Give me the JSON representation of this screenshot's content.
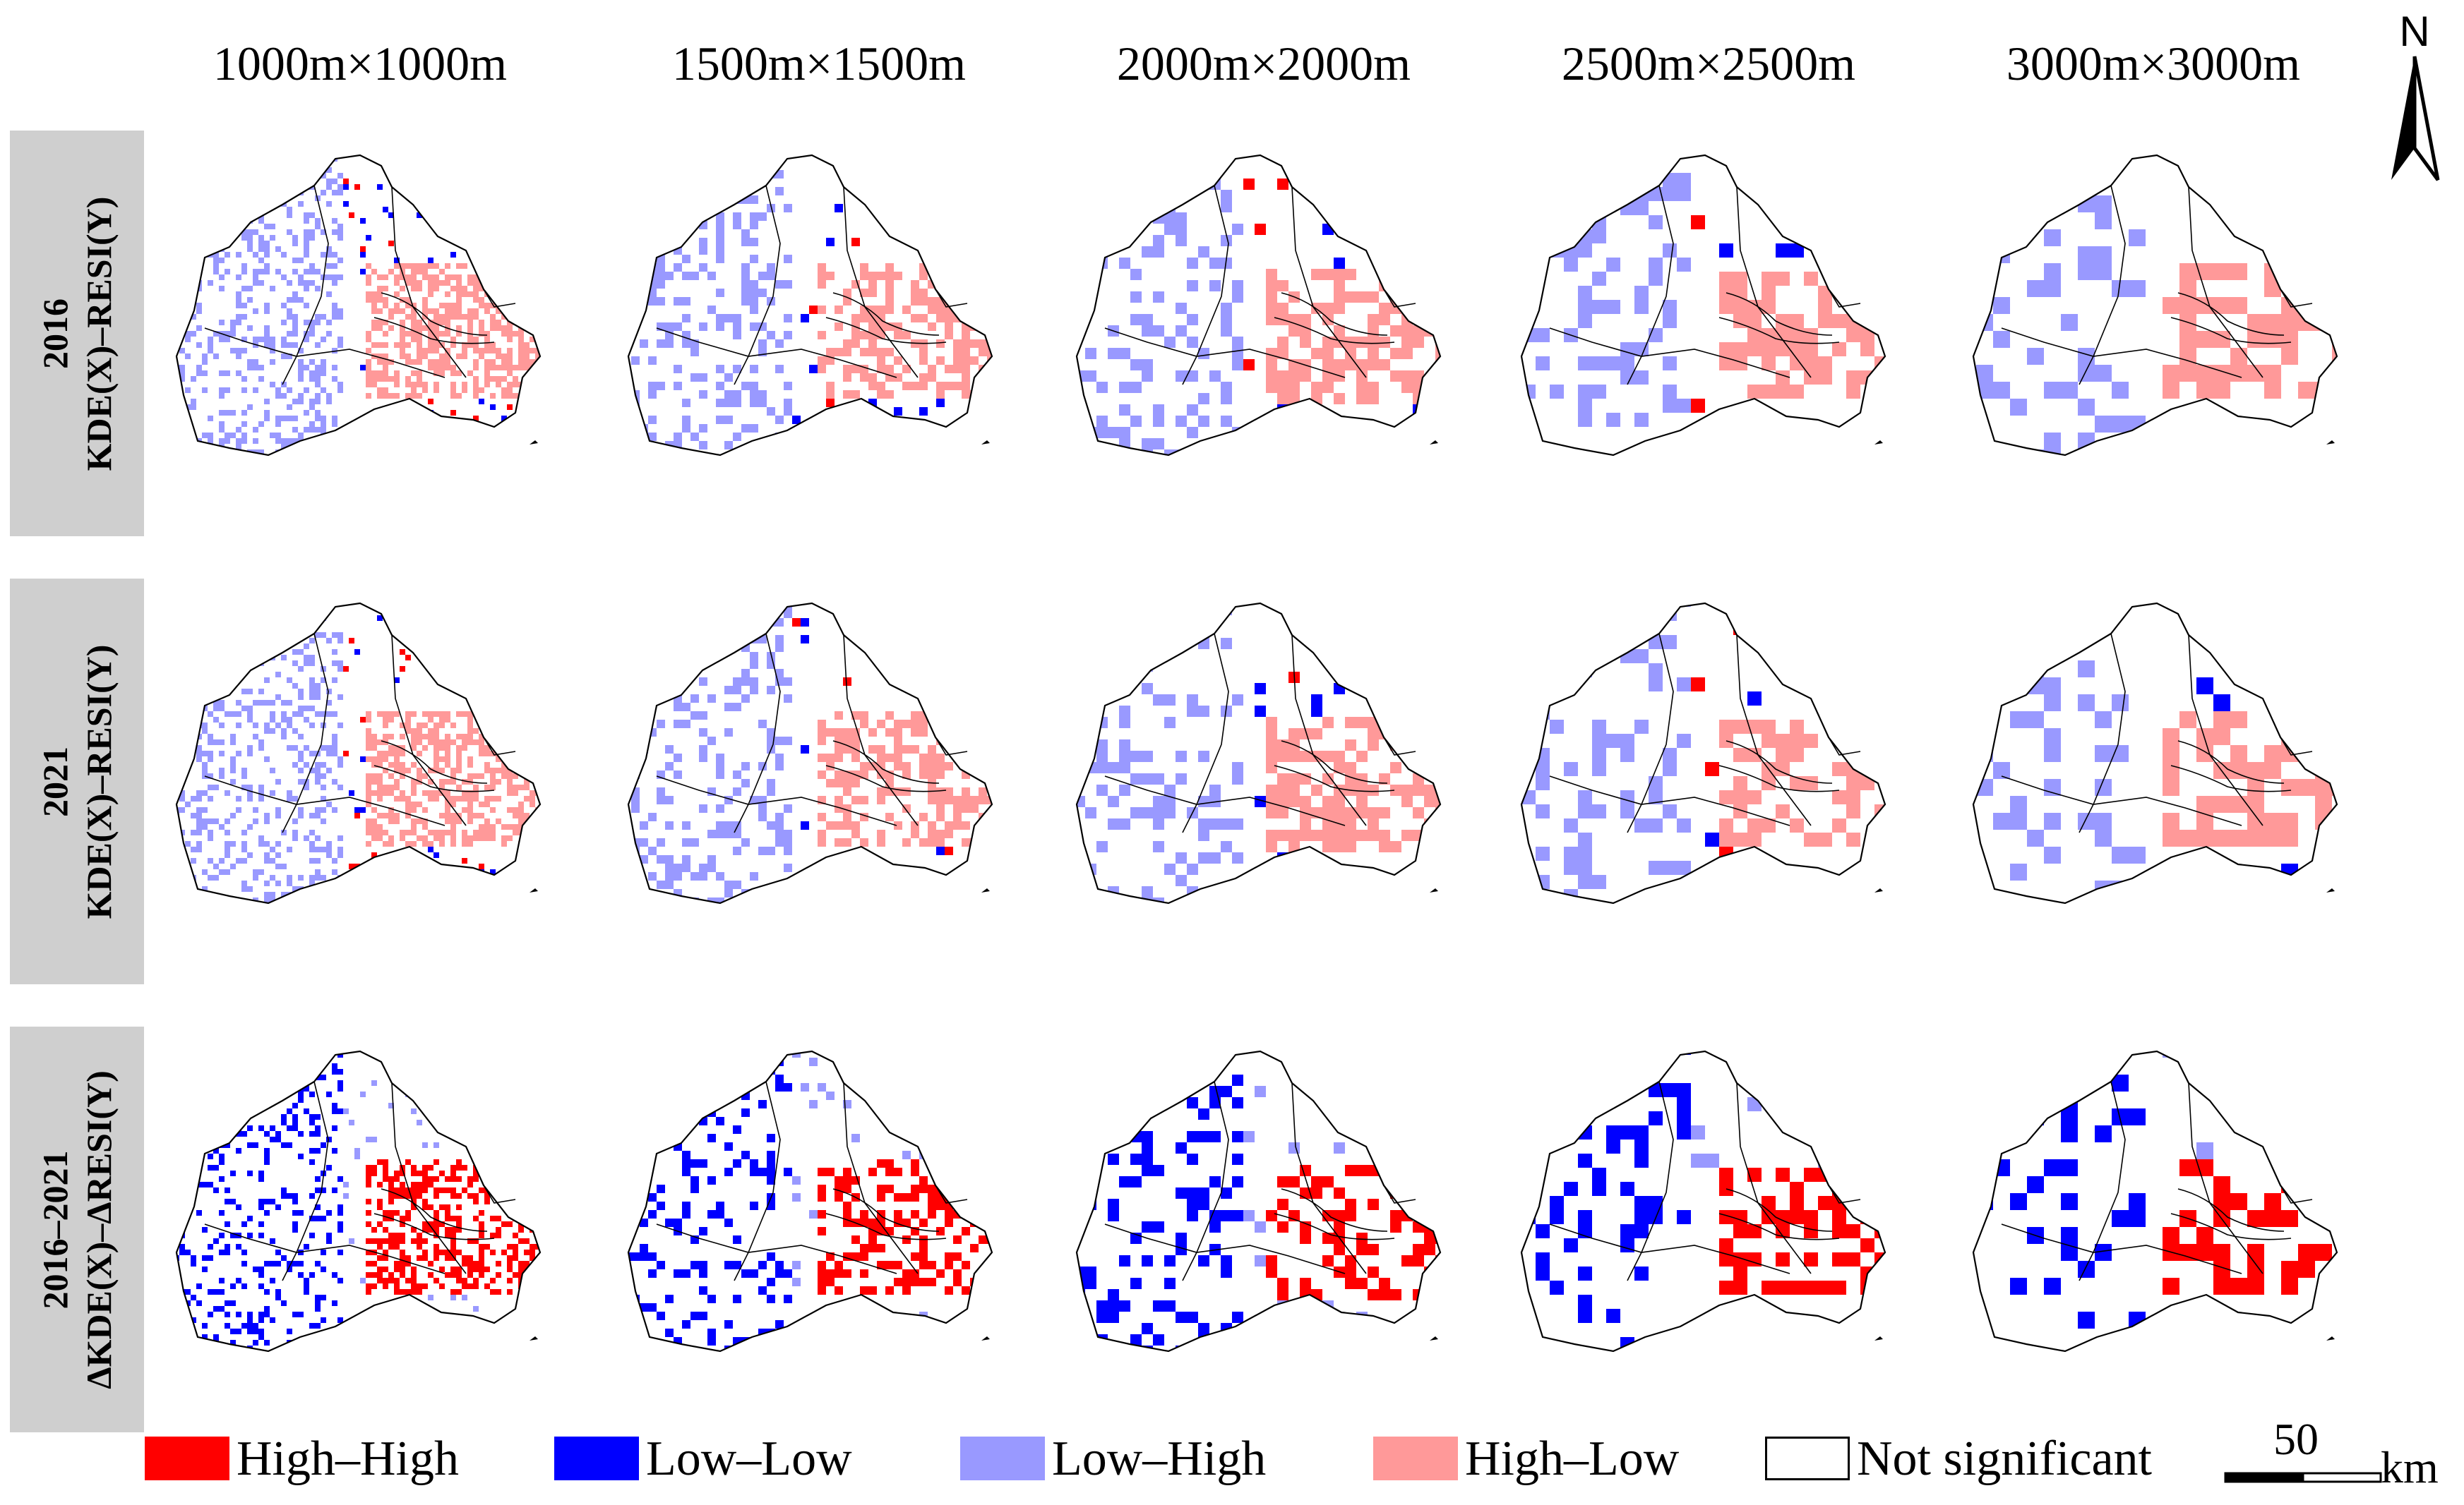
{
  "columns": [
    "1000m×1000m",
    "1500m×1500m",
    "2000m×2000m",
    "2500m×2500m",
    "3000m×3000m"
  ],
  "rows": [
    {
      "year": "2016",
      "label": "KDE(X)–RESI(Y)"
    },
    {
      "year": "2021",
      "label": "KDE(X)–RESI(Y)"
    },
    {
      "year": "2016–2021",
      "label": "ΔKDE(X)–ΔRESI(Y)"
    }
  ],
  "legend": [
    {
      "label": "High–High",
      "color": "#ff0000"
    },
    {
      "label": "Low–Low",
      "color": "#0000ff"
    },
    {
      "label": "Low–High",
      "color": "#9999ff"
    },
    {
      "label": "High–Low",
      "color": "#ff9999"
    },
    {
      "label": "Not significant",
      "color": "#ffffff"
    }
  ],
  "north_arrow": {
    "label": "N"
  },
  "scale_bar": {
    "value": "50",
    "unit": "km"
  }
}
